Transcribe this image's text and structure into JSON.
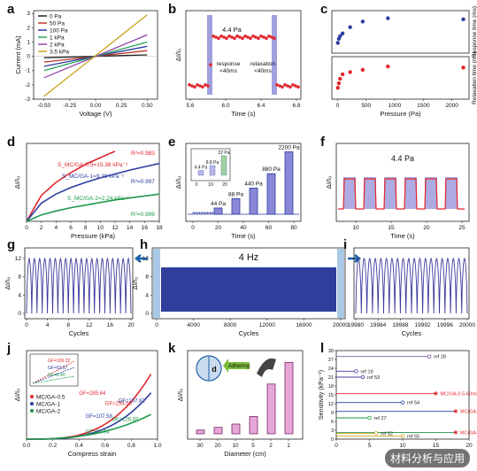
{
  "panels": {
    "a": {
      "label": "a",
      "xlabel": "Voltage (V)",
      "ylabel": "Current (mA)",
      "xticks": [
        "-0.50",
        "-0.25",
        "0.00",
        "0.25",
        "0.50"
      ],
      "yticks": [
        "3",
        "2",
        "1",
        "0",
        "-1",
        "-2",
        "-3"
      ],
      "legend": [
        "0 Pa",
        "50 Pa",
        "100 Pa",
        "1 kPa",
        "2 kPa",
        "3.5 kPa"
      ],
      "colors": [
        "#222222",
        "#c0392b",
        "#2c3e9e",
        "#27a35a",
        "#8e44ad",
        "#c8a21a"
      ]
    },
    "b": {
      "label": "b",
      "title": "4.4 Pa",
      "xlabel": "Time (s)",
      "ylabel": "ΔI/I₀",
      "xticks": [
        "5.6",
        "6.0",
        "6.4",
        "6.8"
      ],
      "response": "response",
      "response2": "<40ms",
      "relaxation": "relaxation",
      "relaxation2": "<40ms"
    },
    "c": {
      "label": "c",
      "ylabel_top": "Response time (ms)",
      "ylabel_bottom": "Relaxation time (ms)",
      "xlabel": "Pressure (Pa)",
      "xticks": [
        "0",
        "500",
        "1000",
        "1500",
        "2000"
      ]
    },
    "d": {
      "label": "d",
      "xlabel": "Pressure (kPa)",
      "ylabel": "ΔI/I₀",
      "xticks": [
        "0",
        "2",
        "4",
        "6",
        "8",
        "10",
        "12",
        "14",
        "16",
        "18"
      ],
      "s1": "S_MC/GA-0.5=15.38 kPa⁻¹",
      "s2": "S_MC/GA-1=9.38 kPa⁻¹",
      "s3": "S_MC/GA-2=2.24 kPa⁻¹",
      "r1": "R²=0.983",
      "r2": "R²=0.997",
      "r3": "R²=0.999"
    },
    "e": {
      "label": "e",
      "xlabel": "Time (s)",
      "ylabel": "ΔI/I₀",
      "xticks": [
        "0",
        "20",
        "40",
        "60",
        "80"
      ],
      "peaks": [
        "44 Pa",
        "88 Pa",
        "440 Pa",
        "880 Pa",
        "2200 Pa"
      ],
      "inset_peaks": [
        "4.4 Pa",
        "8.8 Pa",
        "22 Pa"
      ],
      "inset_xticks": [
        "0",
        "10",
        "20"
      ],
      "inset_yticks": [
        "0.0",
        "0.5",
        "1.0"
      ]
    },
    "f": {
      "label": "f",
      "title": "4.4 Pa",
      "xlabel": "Time (s)",
      "ylabel": "ΔI/I₀",
      "xticks": [
        "10",
        "15",
        "20",
        "25"
      ]
    },
    "g": {
      "label": "g",
      "xlabel": "Cycles",
      "ylabel": "ΔI/I₀",
      "xticks": [
        "0",
        "4",
        "8",
        "12",
        "16",
        "20"
      ],
      "yticks": [
        "0",
        "4",
        "8",
        "12"
      ]
    },
    "h": {
      "label": "h",
      "title": "4 Hz",
      "xlabel": "Cycles",
      "ylabel": "ΔI/I₀",
      "xticks": [
        "0",
        "4000",
        "8000",
        "12000",
        "16000",
        "20000"
      ],
      "yticks": [
        "0",
        "4",
        "8",
        "12"
      ]
    },
    "i": {
      "label": "i",
      "xlabel": "Cycles",
      "xticks": [
        "19980",
        "19984",
        "19988",
        "19992",
        "19996",
        "20000"
      ]
    },
    "j": {
      "label": "j",
      "xlabel": "Compress strain",
      "ylabel": "ΔI/I₀",
      "xticks": [
        "0.0",
        "0.2",
        "0.4",
        "0.6",
        "0.8",
        "1.0"
      ],
      "legend": [
        "MC/GA-0.5",
        "MC/GA-1",
        "MC/GA-2"
      ],
      "gf_labels": [
        "GF=285.64",
        "GF=254.56",
        "GF=167.82",
        "GF=107.58",
        "GF=128.83",
        "GF=20.94"
      ],
      "inset_gf": [
        "GF=109.22",
        "GF=53.57",
        "GF=6.40"
      ]
    },
    "k": {
      "label": "k",
      "xlabel": "Diameter (cm)",
      "ylabel": "ΔI/I₀",
      "xticks": [
        "30",
        "20",
        "10",
        "5",
        "2",
        "1"
      ],
      "adhering": "Adhering",
      "d_symbol": "d"
    },
    "l": {
      "label": "l",
      "ylabel": "Sensitivity (kPa⁻¹)",
      "yticks": [
        "0",
        "3",
        "6",
        "9",
        "12",
        "15",
        "18",
        "21",
        "24",
        "27",
        "30"
      ],
      "xticks": [
        "0",
        "5",
        "10",
        "15",
        "20"
      ],
      "refs": [
        "ref 28",
        "ref 19",
        "ref 53",
        "MC/GA-0.5-60min",
        "ref 54",
        "MC/GA-1-60min",
        "ref 27",
        "MC/GA-2-60min",
        "ref 52",
        "ref 55"
      ]
    }
  },
  "watermark": "材料分析与应用",
  "chart_data": [
    {
      "type": "line",
      "panel": "a",
      "xlabel": "Voltage (V)",
      "ylabel": "Current (mA)",
      "xlim": [
        -0.6,
        0.6
      ],
      "ylim": [
        -3,
        3.2
      ],
      "series": [
        {
          "name": "0 Pa",
          "x": [
            -0.5,
            0.5
          ],
          "y": [
            -0.1,
            0.1
          ]
        },
        {
          "name": "50 Pa",
          "x": [
            -0.5,
            0.5
          ],
          "y": [
            -0.4,
            0.4
          ]
        },
        {
          "name": "100 Pa",
          "x": [
            -0.5,
            0.5
          ],
          "y": [
            -0.7,
            0.7
          ]
        },
        {
          "name": "1 kPa",
          "x": [
            -0.5,
            0.5
          ],
          "y": [
            -1.0,
            1.0
          ]
        },
        {
          "name": "2 kPa",
          "x": [
            -0.5,
            0.5
          ],
          "y": [
            -1.5,
            1.5
          ]
        },
        {
          "name": "3.5 kPa",
          "x": [
            -0.5,
            0.5
          ],
          "y": [
            -2.8,
            2.9
          ]
        }
      ]
    },
    {
      "type": "scatter",
      "panel": "c",
      "xlabel": "Pressure (Pa)",
      "xlim": [
        -100,
        2300
      ],
      "series": [
        {
          "name": "Response time (ms)",
          "x": [
            4.4,
            22,
            44,
            88,
            220,
            440,
            880,
            2200
          ],
          "y": [
            30,
            48,
            60,
            72,
            100,
            125,
            140,
            135
          ]
        },
        {
          "name": "Relaxation time (ms)",
          "x": [
            4.4,
            22,
            44,
            88,
            220,
            440,
            880,
            2200
          ],
          "y": [
            35,
            55,
            75,
            95,
            105,
            115,
            130,
            125
          ]
        }
      ]
    },
    {
      "type": "line",
      "panel": "d",
      "xlabel": "Pressure (kPa)",
      "ylabel": "ΔI/I₀",
      "xlim": [
        0,
        18
      ],
      "series": [
        {
          "name": "MC/GA-0.5",
          "x": [
            0,
            2,
            4,
            6,
            8,
            10,
            12
          ],
          "y": [
            0,
            40,
            60,
            75,
            88,
            98,
            108
          ]
        },
        {
          "name": "MC/GA-1",
          "x": [
            0,
            2,
            4,
            6,
            8,
            10,
            12,
            14,
            16,
            18
          ],
          "y": [
            0,
            28,
            42,
            52,
            60,
            67,
            73,
            79,
            84,
            89
          ]
        },
        {
          "name": "MC/GA-2",
          "x": [
            0,
            2,
            4,
            6,
            8,
            10,
            12,
            14,
            16,
            18
          ],
          "y": [
            0,
            10,
            16,
            21,
            25,
            29,
            33,
            36,
            39,
            42
          ]
        }
      ]
    },
    {
      "type": "bar",
      "panel": "e",
      "categories": [
        "44 Pa",
        "88 Pa",
        "440 Pa",
        "880 Pa",
        "2200 Pa"
      ],
      "values": [
        1.0,
        2.5,
        4.2,
        6.5,
        10.0
      ]
    },
    {
      "type": "bar",
      "panel": "k",
      "xlabel": "Diameter (cm)",
      "categories": [
        "30",
        "20",
        "10",
        "5",
        "2",
        "1"
      ],
      "values": [
        0.35,
        0.6,
        0.9,
        1.6,
        4.6,
        6.6
      ]
    },
    {
      "type": "scatter",
      "panel": "l",
      "ylabel": "Sensitivity (kPa⁻¹)",
      "xlim": [
        0,
        20
      ],
      "ylim": [
        0,
        30
      ],
      "series": [
        {
          "name": "ref 28",
          "x": [
            0,
            14
          ],
          "y": [
            28,
            28
          ]
        },
        {
          "name": "ref 19",
          "x": [
            0,
            3
          ],
          "y": [
            23,
            23
          ]
        },
        {
          "name": "ref 53",
          "x": [
            0,
            4
          ],
          "y": [
            21,
            21
          ]
        },
        {
          "name": "MC/GA-0.5-60min",
          "x": [
            0,
            15
          ],
          "y": [
            15.4,
            15.4
          ]
        },
        {
          "name": "ref 54",
          "x": [
            0,
            10
          ],
          "y": [
            12.4,
            12.4
          ]
        },
        {
          "name": "MC/GA-1-60min",
          "x": [
            0,
            18
          ],
          "y": [
            9.4,
            9.4
          ]
        },
        {
          "name": "ref 27",
          "x": [
            0,
            5
          ],
          "y": [
            7.2,
            7.2
          ]
        },
        {
          "name": "MC/GA-2-60min",
          "x": [
            0,
            18
          ],
          "y": [
            2.24,
            2.24
          ]
        },
        {
          "name": "ref 52",
          "x": [
            0,
            6
          ],
          "y": [
            2.0,
            2.0
          ]
        },
        {
          "name": "ref 55",
          "x": [
            0,
            10
          ],
          "y": [
            1.0,
            1.0
          ]
        }
      ]
    }
  ]
}
